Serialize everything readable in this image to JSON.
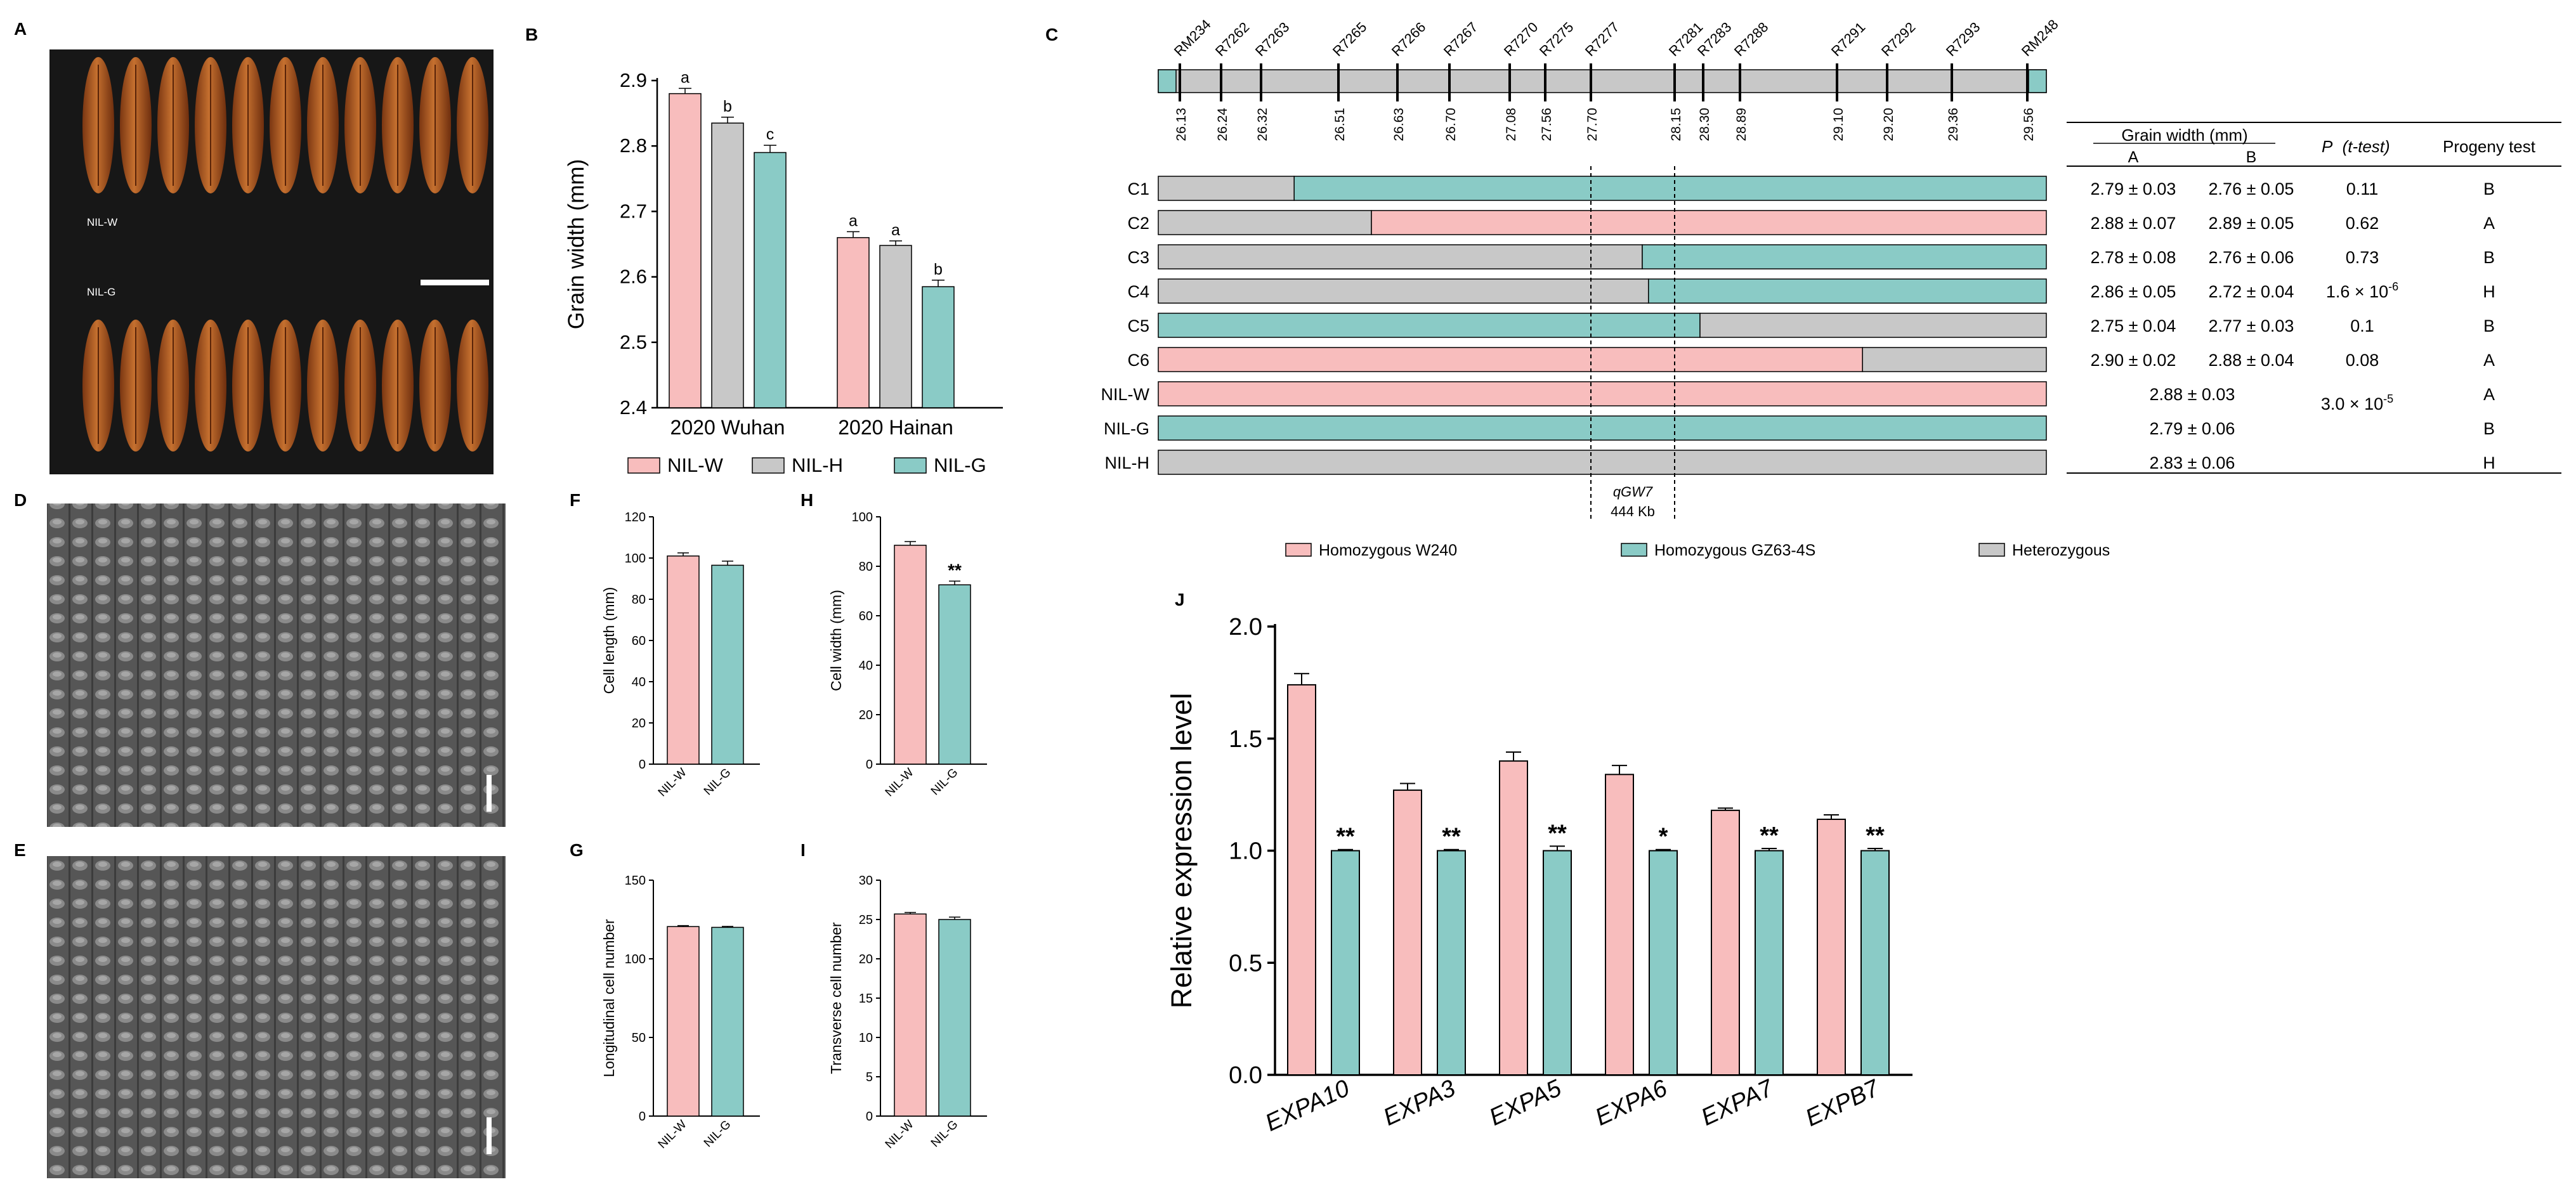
{
  "panel_letters": {
    "A": "A",
    "B": "B",
    "C": "C",
    "D": "D",
    "E": "E",
    "F": "F",
    "G": "G",
    "H": "H",
    "I": "I",
    "J": "J"
  },
  "colors": {
    "W": "#F8BDBD",
    "G": "#8ACBC6",
    "H": "#C8C8C8",
    "black": "#000000",
    "grain_bg": "#171717",
    "sem_bg": "#5a5a5a"
  },
  "panel_a": {
    "label_top": "NIL-W",
    "label_bottom": "NIL-G",
    "grains_per_row": 11,
    "scale_bar": "scale-bar"
  },
  "legend_c": {
    "items": [
      {
        "label": "Homozygous W240",
        "color": "#F8BDBD"
      },
      {
        "label": "Homozygous GZ63-4S",
        "color": "#8ACBC6"
      },
      {
        "label": "Heterozygous",
        "color": "#C8C8C8"
      }
    ]
  },
  "panel_c": {
    "markers": [
      {
        "name": "RM234",
        "pos": "26.13"
      },
      {
        "name": "R7262",
        "pos": "26.24"
      },
      {
        "name": "R7263",
        "pos": "26.32"
      },
      {
        "name": "R7265",
        "pos": "26.51"
      },
      {
        "name": "R7266",
        "pos": "26.63"
      },
      {
        "name": "R7267",
        "pos": "26.70"
      },
      {
        "name": "R7270",
        "pos": "27.08"
      },
      {
        "name": "R7275",
        "pos": "27.56"
      },
      {
        "name": "R7277",
        "pos": "27.70"
      },
      {
        "name": "R7281",
        "pos": "28.15"
      },
      {
        "name": "R7283",
        "pos": "28.30"
      },
      {
        "name": "R7288",
        "pos": "28.89"
      },
      {
        "name": "R7291",
        "pos": "29.10"
      },
      {
        "name": "R7292",
        "pos": "29.20"
      },
      {
        "name": "R7293",
        "pos": "29.36"
      },
      {
        "name": "RM248",
        "pos": "29.56"
      }
    ],
    "rows": [
      {
        "name": "C1",
        "segments": [
          {
            "genotype": "H",
            "end": 0.153
          },
          {
            "genotype": "G",
            "end": 1.0
          }
        ],
        "a": "2.79 ± 0.03",
        "b": "2.76 ± 0.05",
        "p": "0.11",
        "progeny": "B"
      },
      {
        "name": "C2",
        "segments": [
          {
            "genotype": "H",
            "end": 0.24
          },
          {
            "genotype": "W",
            "end": 1.0
          }
        ],
        "a": "2.88 ± 0.07",
        "b": "2.89 ± 0.05",
        "p": "0.62",
        "progeny": "A"
      },
      {
        "name": "C3",
        "segments": [
          {
            "genotype": "H",
            "end": 0.545
          },
          {
            "genotype": "G",
            "end": 1.0
          }
        ],
        "a": "2.78 ± 0.08",
        "b": "2.76 ± 0.06",
        "p": "0.73",
        "progeny": "B"
      },
      {
        "name": "C4",
        "segments": [
          {
            "genotype": "H",
            "end": 0.552
          },
          {
            "genotype": "G",
            "end": 1.0
          }
        ],
        "a": "2.86 ± 0.05",
        "b": "2.72 ± 0.04",
        "p": "1.6 × 10",
        "p_exp": "-6",
        "progeny": "H"
      },
      {
        "name": "C5",
        "segments": [
          {
            "genotype": "G",
            "end": 0.61
          },
          {
            "genotype": "H",
            "end": 1.0
          }
        ],
        "a": "2.75 ± 0.04",
        "b": "2.77 ± 0.03",
        "p": "0.1",
        "progeny": "B"
      },
      {
        "name": "C6",
        "segments": [
          {
            "genotype": "W",
            "end": 0.793
          },
          {
            "genotype": "H",
            "end": 1.0
          }
        ],
        "a": "2.90 ± 0.02",
        "b": "2.88 ± 0.04",
        "p": "0.08",
        "progeny": "A"
      },
      {
        "name": "NIL-W",
        "segments": [
          {
            "genotype": "W",
            "end": 1.0
          }
        ],
        "combined": "2.88 ± 0.03",
        "progeny": "A"
      },
      {
        "name": "NIL-G",
        "segments": [
          {
            "genotype": "G",
            "end": 1.0
          }
        ],
        "combined": "2.79 ± 0.06",
        "progeny": "B"
      },
      {
        "name": "NIL-H",
        "segments": [
          {
            "genotype": "H",
            "end": 1.0
          }
        ],
        "combined": "2.83 ± 0.06",
        "progeny": "H"
      }
    ],
    "table_headers": {
      "grain_width": "Grain width (mm)",
      "a": "A",
      "b": "B",
      "p": "P",
      "p_suffix": "(t-test)",
      "progeny": "Progeny test"
    },
    "nil_p": "3.0 × 10",
    "nil_p_exp": "-5",
    "qtl_name": "qGW7",
    "qtl_size": "444 Kb"
  },
  "chart_data": [
    {
      "id": "B",
      "type": "bar",
      "categories": [
        "2020 Wuhan",
        "2020 Hainan"
      ],
      "series": [
        {
          "name": "NIL-W",
          "color": "#F8BDBD",
          "values": [
            2.88,
            2.66
          ],
          "errors": [
            0.008,
            0.009
          ],
          "letters": [
            "a",
            "a"
          ]
        },
        {
          "name": "NIL-H",
          "color": "#C8C8C8",
          "values": [
            2.835,
            2.648
          ],
          "errors": [
            0.009,
            0.007
          ],
          "letters": [
            "b",
            "a"
          ]
        },
        {
          "name": "NIL-G",
          "color": "#8ACBC6",
          "values": [
            2.79,
            2.585
          ],
          "errors": [
            0.011,
            0.01
          ],
          "letters": [
            "c",
            "b"
          ]
        }
      ],
      "ylabel": "Grain width (mm)",
      "ylim": [
        2.4,
        2.9
      ],
      "yticks": [
        "2.4",
        "2.5",
        "2.6",
        "2.7",
        "2.8",
        "2.9"
      ],
      "legend": [
        "NIL-W",
        "NIL-H",
        "NIL-G"
      ]
    },
    {
      "id": "F",
      "type": "bar",
      "categories": [
        "NIL-W",
        "NIL-G"
      ],
      "values": [
        101,
        96.5
      ],
      "errors": [
        1.5,
        2
      ],
      "colors": [
        "#F8BDBD",
        "#8ACBC6"
      ],
      "ylabel": "Cell length (mm)",
      "ylim": [
        0,
        120
      ],
      "yticks": [
        "0",
        "20",
        "40",
        "60",
        "80",
        "100",
        "120"
      ],
      "sig": ""
    },
    {
      "id": "H",
      "type": "bar",
      "categories": [
        "NIL-W",
        "NIL-G"
      ],
      "values": [
        88.5,
        72.5
      ],
      "errors": [
        1.5,
        1.5
      ],
      "colors": [
        "#F8BDBD",
        "#8ACBC6"
      ],
      "ylabel": "Cell width (mm)",
      "ylim": [
        0,
        100
      ],
      "yticks": [
        "0",
        "20",
        "40",
        "60",
        "80",
        "100"
      ],
      "sig": "**"
    },
    {
      "id": "G",
      "type": "bar",
      "categories": [
        "NIL-W",
        "NIL-G"
      ],
      "values": [
        120.5,
        120
      ],
      "errors": [
        0.6,
        0.6
      ],
      "colors": [
        "#F8BDBD",
        "#8ACBC6"
      ],
      "ylabel": "Longitudinal cell number",
      "ylim": [
        0,
        150
      ],
      "yticks": [
        "0",
        "50",
        "100",
        "150"
      ],
      "sig": ""
    },
    {
      "id": "I",
      "type": "bar",
      "categories": [
        "NIL-W",
        "NIL-G"
      ],
      "values": [
        25.7,
        25.0
      ],
      "errors": [
        0.2,
        0.3
      ],
      "colors": [
        "#F8BDBD",
        "#8ACBC6"
      ],
      "ylabel": "Transverse cell number",
      "ylim": [
        0,
        30
      ],
      "yticks": [
        "0",
        "5",
        "10",
        "15",
        "20",
        "25",
        "30"
      ],
      "sig": ""
    },
    {
      "id": "J",
      "type": "bar",
      "categories": [
        "EXPA10",
        "EXPA3",
        "EXPA5",
        "EXPA6",
        "EXPA7",
        "EXPB7"
      ],
      "series": [
        {
          "name": "NIL-W",
          "color": "#F8BDBD",
          "values": [
            1.74,
            1.27,
            1.4,
            1.34,
            1.18,
            1.14
          ],
          "errors": [
            0.05,
            0.03,
            0.04,
            0.04,
            0.01,
            0.02
          ]
        },
        {
          "name": "NIL-G",
          "color": "#8ACBC6",
          "values": [
            1.0,
            1.0,
            1.0,
            1.0,
            1.0,
            1.0
          ],
          "errors": [
            0.005,
            0.005,
            0.02,
            0.005,
            0.01,
            0.01
          ],
          "sig": [
            "**",
            "**",
            "**",
            "*",
            "**",
            "**"
          ]
        }
      ],
      "ylabel": "Relative expression level",
      "ylim": [
        0,
        2.0
      ],
      "yticks": [
        "0.0",
        "0.5",
        "1.0",
        "1.5",
        "2.0"
      ]
    }
  ]
}
